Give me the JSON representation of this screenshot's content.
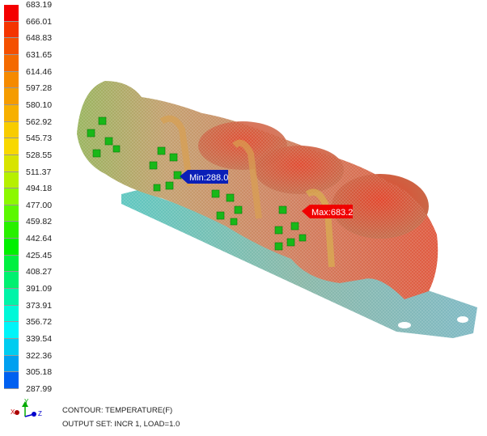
{
  "legend": {
    "labels": [
      "683.19",
      "666.01",
      "648.83",
      "631.65",
      "614.46",
      "597.28",
      "580.10",
      "562.92",
      "545.73",
      "528.55",
      "511.37",
      "494.18",
      "477.00",
      "459.82",
      "442.64",
      "425.45",
      "408.27",
      "391.09",
      "373.91",
      "356.72",
      "339.54",
      "322.36",
      "305.18",
      "287.99"
    ],
    "colors": [
      "#f40000",
      "#f43400",
      "#f45000",
      "#f46a00",
      "#f58a00",
      "#f59c00",
      "#f7b000",
      "#f8cc00",
      "#f8d800",
      "#d8e400",
      "#b6f000",
      "#8cf800",
      "#5cf800",
      "#28f000",
      "#00f000",
      "#00f040",
      "#00f070",
      "#00f4a8",
      "#00f8d8",
      "#00f4f8",
      "#00ccf0",
      "#00a0f0",
      "#0060f0",
      "#0010e8"
    ]
  },
  "markers": {
    "min_label": "Min:288.0",
    "max_label": "Max:683.2",
    "min_color": "#0a1fb8",
    "max_color": "#f00000"
  },
  "info": {
    "contour": "CONTOUR: TEMPERATURE(F)",
    "output_set": "OUTPUT SET: INCR 1, LOAD=1.0"
  },
  "triad": {
    "x": "X",
    "y": "Y",
    "z": "Z"
  }
}
